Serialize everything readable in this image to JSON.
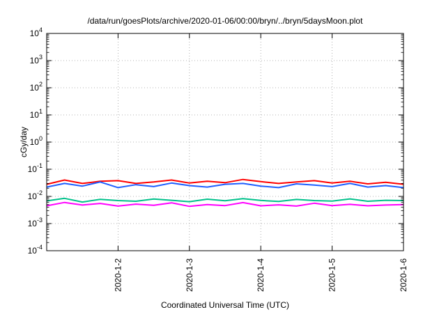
{
  "chart_data": {
    "type": "line",
    "title": "/data/run/goesPlots/archive/2020-01-06/00:00/bryn/../bryn/5daysMoon.plot",
    "xlabel": "Coordinated Universal Time (UTC)",
    "ylabel": "cGy/day",
    "xlim": [
      "2020-01-01T00:00",
      "2020-01-06T00:00"
    ],
    "ylim": [
      0.0001,
      10000
    ],
    "yscale": "log",
    "grid": true,
    "legend": "none",
    "x_ticks": [
      "2020-1-2",
      "2020-1-3",
      "2020-1-4",
      "2020-1-5",
      "2020-1-6"
    ],
    "y_ticks": [
      {
        "base": "10",
        "exp": "4",
        "value": 10000
      },
      {
        "base": "10",
        "exp": "3",
        "value": 1000
      },
      {
        "base": "10",
        "exp": "2",
        "value": 100
      },
      {
        "base": "10",
        "exp": "1",
        "value": 10
      },
      {
        "base": "10",
        "exp": "0",
        "value": 1
      },
      {
        "base": "10",
        "exp": "-1",
        "value": 0.1
      },
      {
        "base": "10",
        "exp": "-2",
        "value": 0.01
      },
      {
        "base": "10",
        "exp": "-3",
        "value": 0.001
      },
      {
        "base": "10",
        "exp": "-4",
        "value": 0.0001
      }
    ],
    "series": [
      {
        "color": "#ff0000",
        "x": [
          "2020-01-01T00:00",
          "2020-01-01T06:00",
          "2020-01-01T12:00",
          "2020-01-01T18:00",
          "2020-01-02T00:00",
          "2020-01-02T06:00",
          "2020-01-02T12:00",
          "2020-01-02T18:00",
          "2020-01-03T00:00",
          "2020-01-03T06:00",
          "2020-01-03T12:00",
          "2020-01-03T18:00",
          "2020-01-04T00:00",
          "2020-01-04T06:00",
          "2020-01-04T12:00",
          "2020-01-04T18:00",
          "2020-01-05T00:00",
          "2020-01-05T06:00",
          "2020-01-05T12:00",
          "2020-01-05T18:00",
          "2020-01-06T00:00"
        ],
        "y": [
          0.028,
          0.04,
          0.03,
          0.036,
          0.038,
          0.03,
          0.034,
          0.04,
          0.031,
          0.036,
          0.032,
          0.042,
          0.035,
          0.03,
          0.034,
          0.038,
          0.031,
          0.036,
          0.029,
          0.033,
          0.028
        ]
      },
      {
        "color": "#1f5fff",
        "x": [
          "2020-01-01T00:00",
          "2020-01-01T06:00",
          "2020-01-01T12:00",
          "2020-01-01T18:00",
          "2020-01-02T00:00",
          "2020-01-02T06:00",
          "2020-01-02T12:00",
          "2020-01-02T18:00",
          "2020-01-03T00:00",
          "2020-01-03T06:00",
          "2020-01-03T12:00",
          "2020-01-03T18:00",
          "2020-01-04T00:00",
          "2020-01-04T06:00",
          "2020-01-04T12:00",
          "2020-01-04T18:00",
          "2020-01-05T00:00",
          "2020-01-05T06:00",
          "2020-01-05T12:00",
          "2020-01-05T18:00",
          "2020-01-06T00:00"
        ],
        "y": [
          0.022,
          0.03,
          0.024,
          0.034,
          0.021,
          0.027,
          0.023,
          0.031,
          0.025,
          0.022,
          0.028,
          0.03,
          0.024,
          0.021,
          0.029,
          0.026,
          0.023,
          0.03,
          0.022,
          0.025,
          0.021
        ]
      },
      {
        "color": "#00c08a",
        "x": [
          "2020-01-01T00:00",
          "2020-01-01T06:00",
          "2020-01-01T12:00",
          "2020-01-01T18:00",
          "2020-01-02T00:00",
          "2020-01-02T06:00",
          "2020-01-02T12:00",
          "2020-01-02T18:00",
          "2020-01-03T00:00",
          "2020-01-03T06:00",
          "2020-01-03T12:00",
          "2020-01-03T18:00",
          "2020-01-04T00:00",
          "2020-01-04T06:00",
          "2020-01-04T12:00",
          "2020-01-04T18:00",
          "2020-01-05T00:00",
          "2020-01-05T06:00",
          "2020-01-05T12:00",
          "2020-01-05T18:00",
          "2020-01-06T00:00"
        ],
        "y": [
          0.0068,
          0.0085,
          0.0062,
          0.0078,
          0.007,
          0.0066,
          0.008,
          0.0072,
          0.0064,
          0.0079,
          0.0069,
          0.0083,
          0.0071,
          0.0065,
          0.0077,
          0.007,
          0.0067,
          0.0081,
          0.0066,
          0.0072,
          0.007
        ]
      },
      {
        "color": "#ff00ff",
        "x": [
          "2020-01-01T00:00",
          "2020-01-01T06:00",
          "2020-01-01T12:00",
          "2020-01-01T18:00",
          "2020-01-02T00:00",
          "2020-01-02T06:00",
          "2020-01-02T12:00",
          "2020-01-02T18:00",
          "2020-01-03T00:00",
          "2020-01-03T06:00",
          "2020-01-03T12:00",
          "2020-01-03T18:00",
          "2020-01-04T00:00",
          "2020-01-04T06:00",
          "2020-01-04T12:00",
          "2020-01-04T18:00",
          "2020-01-05T00:00",
          "2020-01-05T06:00",
          "2020-01-05T12:00",
          "2020-01-05T18:00",
          "2020-01-06T00:00"
        ],
        "y": [
          0.0045,
          0.006,
          0.0048,
          0.0055,
          0.0044,
          0.0052,
          0.0047,
          0.0058,
          0.0043,
          0.005,
          0.0046,
          0.0059,
          0.0045,
          0.0049,
          0.0044,
          0.0056,
          0.0046,
          0.0051,
          0.0045,
          0.0048,
          0.005
        ]
      }
    ]
  }
}
